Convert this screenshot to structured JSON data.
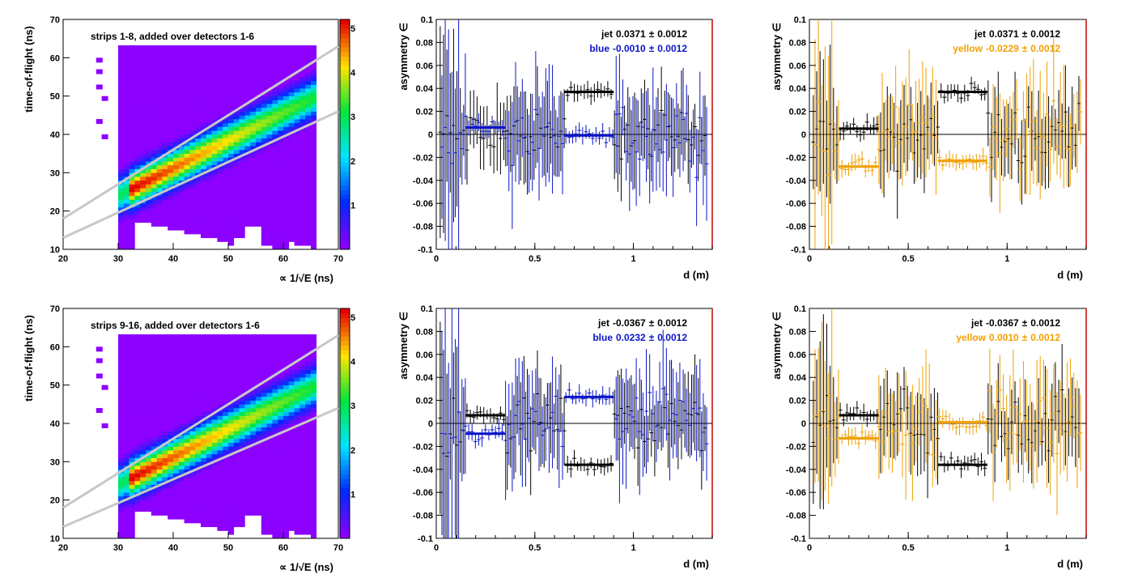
{
  "colors": {
    "jet": "#000000",
    "blue": "#0a14c8",
    "yellow": "#f0a000",
    "frame_right": "#c80000",
    "band": "#c8c8c8",
    "background": "#8c00ff"
  },
  "chart_data": [
    {
      "id": "tof-top",
      "type": "heatmap",
      "annotation": "strips 1-8, added over detectors 1-6",
      "xlabel": "∝ 1/√E (ns)",
      "ylabel": "time-of-flight (ns)",
      "xlim": [
        20,
        70
      ],
      "ylim": [
        10,
        70
      ],
      "xticks": [
        "20",
        "30",
        "40",
        "50",
        "60",
        "70"
      ],
      "yticks": [
        "10",
        "20",
        "30",
        "40",
        "50",
        "60",
        "70"
      ],
      "palette_ticks": [
        "1",
        "2",
        "3",
        "4",
        "5"
      ],
      "colorscale": "rainbow (violet-blue-cyan-green-yellow-red)",
      "band_upper": [
        [
          20,
          18
        ],
        [
          70,
          63
        ]
      ],
      "band_lower": [
        [
          20,
          13
        ],
        [
          70,
          46
        ]
      ],
      "density_ridge": [
        [
          33,
          26
        ],
        [
          40,
          30
        ],
        [
          50,
          36
        ],
        [
          60,
          44
        ],
        [
          65,
          49
        ]
      ]
    },
    {
      "id": "asym-blue-top",
      "type": "scatter",
      "xlabel": "d (m)",
      "ylabel": "asymmetry ∈",
      "xlim": [
        0,
        1.4
      ],
      "ylim": [
        -0.1,
        0.1
      ],
      "xticks": [
        "0",
        "0.5",
        "1"
      ],
      "yticks": [
        "-0.1",
        "-0.08",
        "-0.06",
        "-0.04",
        "-0.02",
        "0",
        "0.02",
        "0.04",
        "0.06",
        "0.08",
        "0.1"
      ],
      "legend": [
        {
          "name": "jet",
          "value": "0.0371",
          "pm": "±",
          "error": "0.0012",
          "color": "jet"
        },
        {
          "name": "blue",
          "value": "-0.0010",
          "pm": "±",
          "error": "0.0012",
          "color": "blue"
        }
      ],
      "series": [
        {
          "name": "jet",
          "color": "jet",
          "scatter_mean": 0.0,
          "scatter_noise": 0.015,
          "error": 0.03,
          "segments": [
            {
              "x": [
                0.65,
                0.9
              ],
              "y": 0.037
            }
          ]
        },
        {
          "name": "blue",
          "color": "blue",
          "scatter_mean": 0.0,
          "scatter_noise": 0.02,
          "error": 0.04,
          "segments": [
            {
              "x": [
                0.15,
                0.35
              ],
              "y": 0.006
            },
            {
              "x": [
                0.65,
                0.9
              ],
              "y": -0.001
            }
          ]
        }
      ]
    },
    {
      "id": "asym-yellow-top",
      "type": "scatter",
      "xlabel": "d (m)",
      "ylabel": "asymmetry ∈",
      "xlim": [
        0,
        1.4
      ],
      "ylim": [
        -0.1,
        0.1
      ],
      "xticks": [
        "0",
        "0.5",
        "1"
      ],
      "yticks": [
        "-0.1",
        "-0.08",
        "-0.06",
        "-0.04",
        "-0.02",
        "0",
        "0.02",
        "0.04",
        "0.06",
        "0.08",
        "0.1"
      ],
      "legend": [
        {
          "name": "jet",
          "value": "0.0371",
          "pm": "±",
          "error": "0.0012",
          "color": "jet"
        },
        {
          "name": "yellow",
          "value": "-0.0229",
          "pm": "±",
          "error": "0.0012",
          "color": "yellow"
        }
      ],
      "series": [
        {
          "name": "jet",
          "color": "jet",
          "scatter_mean": 0.0,
          "scatter_noise": 0.02,
          "error": 0.03,
          "segments": [
            {
              "x": [
                0.15,
                0.35
              ],
              "y": 0.005
            },
            {
              "x": [
                0.65,
                0.9
              ],
              "y": 0.037
            }
          ]
        },
        {
          "name": "yellow",
          "color": "yellow",
          "scatter_mean": 0.0,
          "scatter_noise": 0.02,
          "error": 0.04,
          "segments": [
            {
              "x": [
                0.15,
                0.35
              ],
              "y": -0.028
            },
            {
              "x": [
                0.65,
                0.9
              ],
              "y": -0.023
            }
          ]
        }
      ]
    },
    {
      "id": "tof-bottom",
      "type": "heatmap",
      "annotation": "strips 9-16, added over detectors 1-6",
      "xlabel": "∝ 1/√E (ns)",
      "ylabel": "time-of-flight (ns)",
      "xlim": [
        20,
        70
      ],
      "ylim": [
        10,
        70
      ],
      "xticks": [
        "20",
        "30",
        "40",
        "50",
        "60",
        "70"
      ],
      "yticks": [
        "10",
        "20",
        "30",
        "40",
        "50",
        "60",
        "70"
      ],
      "palette_ticks": [
        "1",
        "2",
        "3",
        "4",
        "5"
      ],
      "colorscale": "rainbow (violet-blue-cyan-green-yellow-red)",
      "band_upper": [
        [
          20,
          18
        ],
        [
          70,
          63
        ]
      ],
      "band_lower": [
        [
          20,
          13
        ],
        [
          70,
          44
        ]
      ],
      "density_ridge": [
        [
          33,
          26
        ],
        [
          40,
          30
        ],
        [
          50,
          36
        ],
        [
          60,
          44
        ],
        [
          65,
          48
        ]
      ]
    },
    {
      "id": "asym-blue-bottom",
      "type": "scatter",
      "xlabel": "d (m)",
      "ylabel": "asymmetry ∈",
      "xlim": [
        0,
        1.4
      ],
      "ylim": [
        -0.1,
        0.1
      ],
      "xticks": [
        "0",
        "0.5",
        "1"
      ],
      "yticks": [
        "-0.1",
        "-0.08",
        "-0.06",
        "-0.04",
        "-0.02",
        "0",
        "0.02",
        "0.04",
        "0.06",
        "0.08",
        "0.1"
      ],
      "legend": [
        {
          "name": "jet",
          "value": "-0.0367",
          "pm": "±",
          "error": "0.0012",
          "color": "jet"
        },
        {
          "name": "blue",
          "value": "0.0232",
          "pm": "±",
          "error": "0.0012",
          "color": "blue"
        }
      ],
      "series": [
        {
          "name": "jet",
          "color": "jet",
          "scatter_mean": 0.0,
          "scatter_noise": 0.02,
          "error": 0.03,
          "segments": [
            {
              "x": [
                0.15,
                0.35
              ],
              "y": 0.007
            },
            {
              "x": [
                0.65,
                0.9
              ],
              "y": -0.036
            }
          ]
        },
        {
          "name": "blue",
          "color": "blue",
          "scatter_mean": 0.0,
          "scatter_noise": 0.02,
          "error": 0.04,
          "segments": [
            {
              "x": [
                0.15,
                0.35
              ],
              "y": -0.009
            },
            {
              "x": [
                0.65,
                0.9
              ],
              "y": 0.023
            }
          ]
        }
      ]
    },
    {
      "id": "asym-yellow-bottom",
      "type": "scatter",
      "xlabel": "d (m)",
      "ylabel": "asymmetry ∈",
      "xlim": [
        0,
        1.4
      ],
      "ylim": [
        -0.1,
        0.1
      ],
      "xticks": [
        "0",
        "0.5",
        "1"
      ],
      "yticks": [
        "-0.1",
        "-0.08",
        "-0.06",
        "-0.04",
        "-0.02",
        "0",
        "0.02",
        "0.04",
        "0.06",
        "0.08",
        "0.1"
      ],
      "legend": [
        {
          "name": "jet",
          "value": "-0.0367",
          "pm": "±",
          "error": "0.0012",
          "color": "jet"
        },
        {
          "name": "yellow",
          "value": "0.0010",
          "pm": "±",
          "error": "0.0012",
          "color": "yellow"
        }
      ],
      "series": [
        {
          "name": "jet",
          "color": "jet",
          "scatter_mean": 0.0,
          "scatter_noise": 0.02,
          "error": 0.03,
          "segments": [
            {
              "x": [
                0.15,
                0.35
              ],
              "y": 0.007
            },
            {
              "x": [
                0.65,
                0.9
              ],
              "y": -0.036
            }
          ]
        },
        {
          "name": "yellow",
          "color": "yellow",
          "scatter_mean": 0.0,
          "scatter_noise": 0.02,
          "error": 0.04,
          "segments": [
            {
              "x": [
                0.15,
                0.35
              ],
              "y": -0.013
            },
            {
              "x": [
                0.65,
                0.9
              ],
              "y": 0.001
            }
          ]
        }
      ]
    }
  ]
}
